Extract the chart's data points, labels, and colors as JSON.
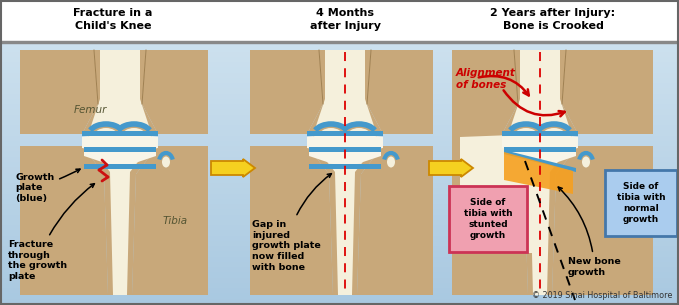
{
  "bg_color": "#b8d4e8",
  "bg_gradient_top": "#d0e4f0",
  "bg_top_color": "#ffffff",
  "border_color": "#666666",
  "title1": "Fracture in a\nChild's Knee",
  "title2": "4 Months\nafter Injury",
  "title3": "2 Years after Injury:\nBone is Crooked",
  "copyright": "© 2019 Sinai Hospital of Baltimore",
  "bone_outer": "#c8a87a",
  "bone_inner": "#f0e8c0",
  "bone_cream": "#f5f0dc",
  "bone_white": "#f8f5e8",
  "cartilage_blue": "#4499cc",
  "cartilage_light": "#88bbdd",
  "arrow_yellow_fill": "#f5d020",
  "arrow_yellow_edge": "#cc8800",
  "red_dashed": "#dd0000",
  "fracture_red": "#cc1111",
  "new_bone_orange": "#f5a020",
  "label_color": "#000000",
  "box_pink_fill": "#f0a0b0",
  "box_pink_edge": "#cc3355",
  "box_blue_fill": "#aaccee",
  "box_blue_edge": "#4477aa",
  "alignment_arrow": "#cc0000",
  "italic_label_color": "#cc0000",
  "outer_edge": "#a08050"
}
